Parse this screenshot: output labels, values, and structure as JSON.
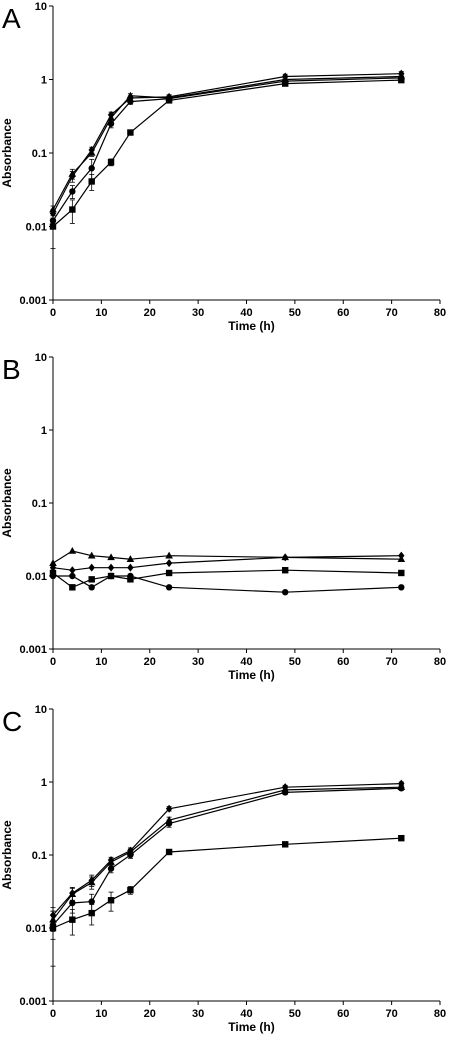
{
  "chart_data": [
    {
      "panel": "A",
      "type": "line",
      "xlabel": "Time (h)",
      "ylabel": "Absorbance",
      "xlim": [
        0,
        80
      ],
      "ylim": [
        0.001,
        10
      ],
      "yscale": "log",
      "x_ticks": [
        "0",
        "10",
        "20",
        "30",
        "40",
        "50",
        "60",
        "70",
        "80"
      ],
      "y_ticks": [
        "0.001",
        "0.01",
        "0.1",
        "1",
        "10"
      ],
      "grid": false,
      "legend": "none",
      "x": [
        0,
        4,
        8,
        12,
        16,
        24,
        48,
        72
      ],
      "series": [
        {
          "marker": "diamond",
          "values": [
            0.015,
            0.048,
            0.11,
            0.33,
            0.56,
            0.58,
            1.1,
            1.2
          ],
          "errors": [
            0.002,
            0.008,
            0.01,
            0.03,
            0.04,
            0.04,
            0.08,
            0.08
          ]
        },
        {
          "marker": "triangle",
          "values": [
            0.017,
            0.052,
            0.1,
            0.3,
            0.6,
            0.56,
            1.0,
            1.1
          ],
          "errors": [
            0.002,
            0.008,
            0.01,
            0.03,
            0.04,
            0.04,
            0.07,
            0.07
          ]
        },
        {
          "marker": "circle",
          "values": [
            0.012,
            0.03,
            0.062,
            0.25,
            0.5,
            0.55,
            0.95,
            1.05
          ],
          "errors": [
            0.002,
            0.006,
            0.02,
            0.03,
            0.04,
            0.04,
            0.07,
            0.07
          ]
        },
        {
          "marker": "square",
          "values": [
            0.01,
            0.017,
            0.041,
            0.075,
            0.19,
            0.52,
            0.88,
            0.98
          ],
          "errors": [
            0.005,
            0.006,
            0.01,
            0.008,
            0.015,
            0.03,
            0.06,
            0.06
          ]
        }
      ]
    },
    {
      "panel": "B",
      "type": "line",
      "xlabel": "Time (h)",
      "ylabel": "Absorbance",
      "xlim": [
        0,
        80
      ],
      "ylim": [
        0.001,
        10
      ],
      "yscale": "log",
      "x_ticks": [
        "0",
        "10",
        "20",
        "30",
        "40",
        "50",
        "60",
        "70",
        "80"
      ],
      "y_ticks": [
        "0.001",
        "0.01",
        "0.1",
        "1",
        "10"
      ],
      "grid": false,
      "legend": "none",
      "x": [
        0,
        4,
        8,
        12,
        16,
        24,
        48,
        72
      ],
      "series": [
        {
          "marker": "triangle",
          "values": [
            0.015,
            0.022,
            0.019,
            0.018,
            0.017,
            0.019,
            0.018,
            0.017
          ],
          "errors": [
            0,
            0,
            0,
            0,
            0,
            0,
            0,
            0
          ]
        },
        {
          "marker": "diamond",
          "values": [
            0.013,
            0.012,
            0.013,
            0.013,
            0.013,
            0.015,
            0.018,
            0.019
          ],
          "errors": [
            0,
            0,
            0,
            0,
            0,
            0,
            0,
            0
          ]
        },
        {
          "marker": "square",
          "values": [
            0.011,
            0.007,
            0.009,
            0.01,
            0.009,
            0.011,
            0.012,
            0.011
          ],
          "errors": [
            0,
            0,
            0,
            0,
            0,
            0,
            0,
            0
          ]
        },
        {
          "marker": "circle",
          "values": [
            0.01,
            0.01,
            0.007,
            0.01,
            0.01,
            0.007,
            0.006,
            0.007
          ],
          "errors": [
            0,
            0,
            0,
            0,
            0,
            0,
            0,
            0
          ]
        }
      ]
    },
    {
      "panel": "C",
      "type": "line",
      "xlabel": "Time (h)",
      "ylabel": "Absorbance",
      "xlim": [
        0,
        80
      ],
      "ylim": [
        0.001,
        10
      ],
      "yscale": "log",
      "x_ticks": [
        "0",
        "10",
        "20",
        "30",
        "40",
        "50",
        "60",
        "70",
        "80"
      ],
      "y_ticks": [
        "0.001",
        "0.01",
        "0.1",
        "1",
        "10"
      ],
      "grid": false,
      "legend": "none",
      "x": [
        0,
        4,
        8,
        12,
        16,
        24,
        48,
        72
      ],
      "series": [
        {
          "marker": "diamond",
          "values": [
            0.015,
            0.03,
            0.045,
            0.085,
            0.115,
            0.43,
            0.85,
            0.95
          ],
          "errors": [
            0.004,
            0.006,
            0.008,
            0.008,
            0.01,
            0.03,
            0.05,
            0.05
          ]
        },
        {
          "marker": "triangle",
          "values": [
            0.013,
            0.029,
            0.042,
            0.08,
            0.11,
            0.3,
            0.78,
            0.85
          ],
          "errors": [
            0.004,
            0.006,
            0.008,
            0.008,
            0.01,
            0.03,
            0.05,
            0.05
          ]
        },
        {
          "marker": "circle",
          "values": [
            0.011,
            0.022,
            0.023,
            0.065,
            0.1,
            0.27,
            0.72,
            0.82
          ],
          "errors": [
            0.004,
            0.006,
            0.006,
            0.008,
            0.01,
            0.03,
            0.05,
            0.05
          ]
        },
        {
          "marker": "square",
          "values": [
            0.01,
            0.013,
            0.016,
            0.024,
            0.033,
            0.11,
            0.14,
            0.17
          ],
          "errors": [
            0.007,
            0.005,
            0.005,
            0.007,
            0.004,
            0.008,
            0.01,
            0.01
          ]
        }
      ]
    }
  ]
}
